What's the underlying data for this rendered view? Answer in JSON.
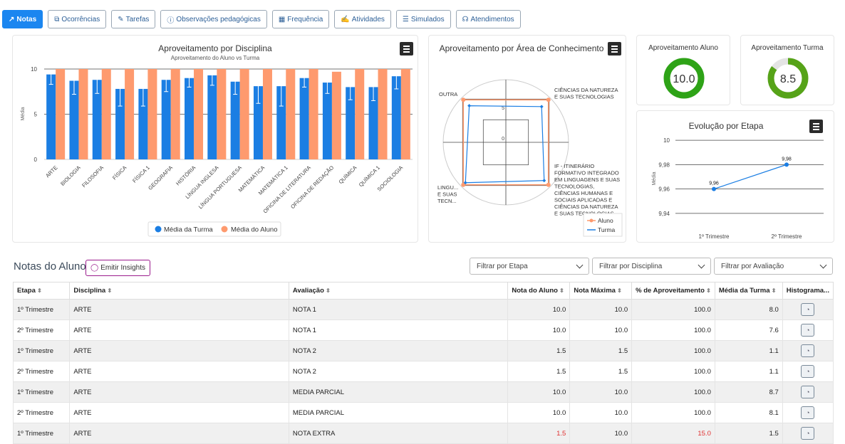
{
  "tabs": [
    {
      "label": "Notas",
      "icon": "chart-line-icon"
    },
    {
      "label": "Ocorrências",
      "icon": "copy-icon"
    },
    {
      "label": "Tarefas",
      "icon": "pencil-icon"
    },
    {
      "label": "Observações pedagógicas",
      "icon": "info-icon"
    },
    {
      "label": "Frequência",
      "icon": "calendar-icon"
    },
    {
      "label": "Atividades",
      "icon": "edit-icon"
    },
    {
      "label": "Simulados",
      "icon": "list-icon"
    },
    {
      "label": "Atendimentos",
      "icon": "headset-icon"
    }
  ],
  "discipline_chart": {
    "title": "Aproveitamento por Disciplina",
    "subtitle": "Aproveitamento do Aluno vs Turma",
    "ylabel": "Média",
    "yticks": [
      "0",
      "5",
      "10"
    ],
    "legend": {
      "turma": "Média da Turma",
      "aluno": "Média do Aluno"
    },
    "colors": {
      "turma": "#1b7ee3",
      "aluno": "#fe9a6e"
    }
  },
  "area_chart": {
    "title": "Aproveitamento por Área de Conhecimento",
    "labels": {
      "outra": "OUTRA",
      "cn": [
        "CIÊNCIAS DA NATUREZA",
        "E SUAS TECNOLOGIAS"
      ],
      "if": [
        "IF - ITINERÁRIO",
        "FORMATIVO INTEGRADO",
        "EM LINGUAGENS E SUAS",
        "TECNOLOGIAS,",
        "CIÊNCIAS HUMANAS E",
        "SOCIAIS APLICADAS E",
        "CIÊNCIAS DA NATUREZA",
        "E SUAS TECNOLOGIAS"
      ],
      "ling": [
        "LINGU...",
        "E SUAS",
        "TECN..."
      ]
    },
    "ticks": [
      "0",
      "5"
    ],
    "legend": {
      "aluno": "Aluno",
      "turma": "Turma"
    }
  },
  "kpi": {
    "aluno": {
      "title": "Aproveitamento Aluno",
      "value": "10.0",
      "fraction": 1.0,
      "color": "#2ea317"
    },
    "turma": {
      "title": "Aproveitamento Turma",
      "value": "8.5",
      "fraction": 0.85,
      "color": "#56a318"
    }
  },
  "evolution_chart": {
    "title": "Evolução por Etapa",
    "ylabel": "Média",
    "yticks": [
      "9,94",
      "9,96",
      "9,98",
      "10"
    ]
  },
  "chart_data": [
    {
      "type": "bar",
      "title": "Aproveitamento por Disciplina",
      "subtitle": "Aproveitamento do Aluno vs Turma",
      "ylabel": "Média",
      "ylim": [
        0,
        10
      ],
      "categories": [
        "ARTE",
        "BIOLOGIA",
        "FILOSOFIA",
        "FÍSICA",
        "FÍSICA 1",
        "GEOGRAFIA",
        "HISTÓRIA",
        "LÍNGUA INGLESA",
        "LÍNGUA PORTUGUESA",
        "MATEMÁTICA",
        "MATEMÁTICA 1",
        "OFICINA DE LITERATURA",
        "OFICINA DE REDAÇÃO",
        "QUÍMICA",
        "QUÍMICA 1",
        "SOCIOLOGIA"
      ],
      "series": [
        {
          "name": "Média da Turma",
          "values": [
            9.4,
            8.7,
            8.8,
            7.8,
            7.8,
            8.8,
            9.0,
            9.3,
            8.6,
            8.1,
            8.1,
            9.0,
            8.5,
            8.0,
            8.0,
            9.2
          ],
          "error_low": [
            8.3,
            7.2,
            7.3,
            5.9,
            5.9,
            7.5,
            8.0,
            8.2,
            7.2,
            6.2,
            5.9,
            8.0,
            7.3,
            6.6,
            6.5,
            7.8
          ],
          "error_high": [
            9.8,
            9.5,
            9.6,
            8.5,
            8.5,
            9.5,
            9.7,
            9.9,
            9.3,
            8.9,
            8.8,
            9.6,
            9.3,
            8.8,
            8.8,
            9.8
          ]
        },
        {
          "name": "Média do Aluno",
          "values": [
            10,
            10,
            10,
            10,
            10,
            10,
            10,
            10,
            10,
            10,
            10,
            10,
            9.7,
            10,
            10,
            10
          ]
        }
      ],
      "legend": "bottom"
    },
    {
      "type": "radar",
      "title": "Aproveitamento por Área de Conhecimento",
      "axes": [
        "OUTRA",
        "CIÊNCIAS DA NATUREZA E SUAS TECNOLOGIAS",
        "IF - ITINERÁRIO FORMATIVO INTEGRADO EM LINGUAGENS E SUAS TECNOLOGIAS, CIÊNCIAS HUMANAS E SOCIAIS APLICADAS E CIÊNCIAS DA NATUREZA E SUAS TECNOLOGIAS",
        "LINGU... E SUAS TECN..."
      ],
      "series": [
        {
          "name": "Aluno",
          "values": [
            10,
            10,
            10,
            10
          ]
        },
        {
          "name": "Turma",
          "values": [
            8.6,
            8.4,
            9.0,
            9.5
          ]
        }
      ],
      "legend": "bottom-right"
    },
    {
      "type": "line",
      "title": "Evolução por Etapa",
      "ylabel": "Média",
      "categories": [
        "1º Trimestre",
        "2º Trimestre"
      ],
      "values": [
        9.96,
        9.98
      ],
      "labels": [
        "9,96",
        "9,98"
      ],
      "ylim": [
        9.93,
        10.01
      ]
    }
  ],
  "notas": {
    "title": "Notas do Aluno",
    "insights_label": "Emitir Insights",
    "filters": [
      "Filtrar por Etapa",
      "Filtrar por Disciplina",
      "Filtrar por Avaliação"
    ],
    "columns": [
      "Etapa",
      "Disciplina",
      "Avaliação",
      "Nota do Aluno",
      "Nota Máxima",
      "% de Aproveitamento",
      "Média da Turma",
      "Histograma..."
    ],
    "rows": [
      {
        "etapa": "1º Trimestre",
        "disciplina": "ARTE",
        "avaliacao": "NOTA 1",
        "nota": "10.0",
        "max": "10.0",
        "pct": "100.0",
        "media": "8.0",
        "low": false
      },
      {
        "etapa": "2º Trimestre",
        "disciplina": "ARTE",
        "avaliacao": "NOTA 1",
        "nota": "10.0",
        "max": "10.0",
        "pct": "100.0",
        "media": "7.6",
        "low": false
      },
      {
        "etapa": "1º Trimestre",
        "disciplina": "ARTE",
        "avaliacao": "NOTA 2",
        "nota": "1.5",
        "max": "1.5",
        "pct": "100.0",
        "media": "1.1",
        "low": false
      },
      {
        "etapa": "2º Trimestre",
        "disciplina": "ARTE",
        "avaliacao": "NOTA 2",
        "nota": "1.5",
        "max": "1.5",
        "pct": "100.0",
        "media": "1.1",
        "low": false
      },
      {
        "etapa": "1º Trimestre",
        "disciplina": "ARTE",
        "avaliacao": "MEDIA PARCIAL",
        "nota": "10.0",
        "max": "10.0",
        "pct": "100.0",
        "media": "8.7",
        "low": false
      },
      {
        "etapa": "2º Trimestre",
        "disciplina": "ARTE",
        "avaliacao": "MEDIA PARCIAL",
        "nota": "10.0",
        "max": "10.0",
        "pct": "100.0",
        "media": "8.1",
        "low": false
      },
      {
        "etapa": "1º Trimestre",
        "disciplina": "ARTE",
        "avaliacao": "NOTA EXTRA",
        "nota": "1.5",
        "max": "10.0",
        "pct": "15.0",
        "media": "1.5",
        "low": true
      }
    ]
  }
}
